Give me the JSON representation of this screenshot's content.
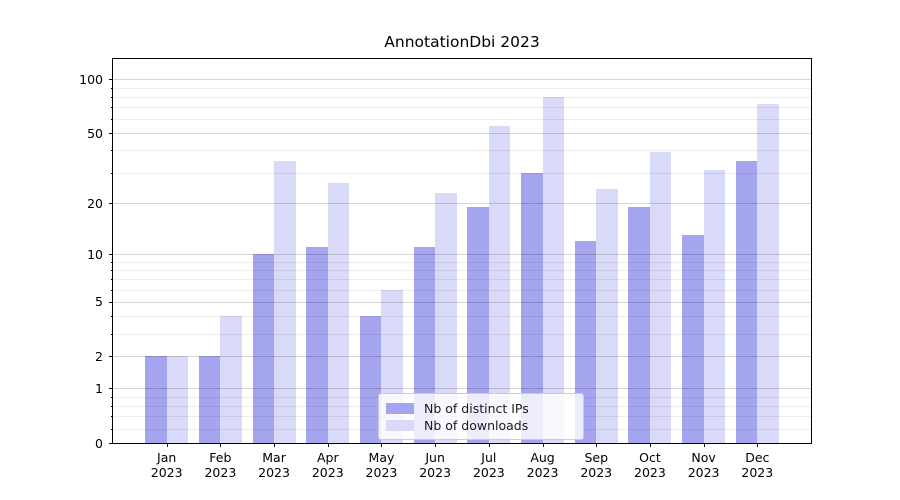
{
  "title": "AnnotationDbi 2023",
  "chart_data": {
    "type": "bar",
    "title": "AnnotationDbi 2023",
    "categories": [
      "Jan 2023",
      "Feb 2023",
      "Mar 2023",
      "Apr 2023",
      "May 2023",
      "Jun 2023",
      "Jul 2023",
      "Aug 2023",
      "Sep 2023",
      "Oct 2023",
      "Nov 2023",
      "Dec 2023"
    ],
    "x_tick_months": [
      "Jan",
      "Feb",
      "Mar",
      "Apr",
      "May",
      "Jun",
      "Jul",
      "Aug",
      "Sep",
      "Oct",
      "Nov",
      "Dec"
    ],
    "x_tick_year": "2023",
    "series": [
      {
        "name": "Nb of distinct IPs",
        "color": "#a5a5ef",
        "values": [
          2,
          2,
          10,
          11,
          4,
          11,
          19,
          30,
          12,
          19,
          13,
          35
        ]
      },
      {
        "name": "Nb of downloads",
        "color": "#d9d9f8",
        "values": [
          2,
          4,
          35,
          26,
          6,
          23,
          55,
          80,
          24,
          39,
          31,
          73
        ]
      }
    ],
    "yscale": "log10(1+v)",
    "ylim": [
      0,
      130
    ],
    "y_ticks": [
      0,
      1,
      2,
      5,
      10,
      20,
      50,
      100
    ],
    "y_minor_ticks": [
      0.2,
      0.4,
      0.6,
      0.8,
      3,
      4,
      6,
      7,
      8,
      9,
      30,
      40,
      60,
      70,
      80,
      90
    ],
    "grid": true,
    "legend_position": "lower center"
  },
  "colors": {
    "background": "#ffffff",
    "axis": "#000000",
    "grid_major": "rgba(0,0,0,0.16)",
    "grid_minor": "rgba(0,0,0,0.07)",
    "text": "#000000",
    "legend_border": "#cccccc"
  }
}
